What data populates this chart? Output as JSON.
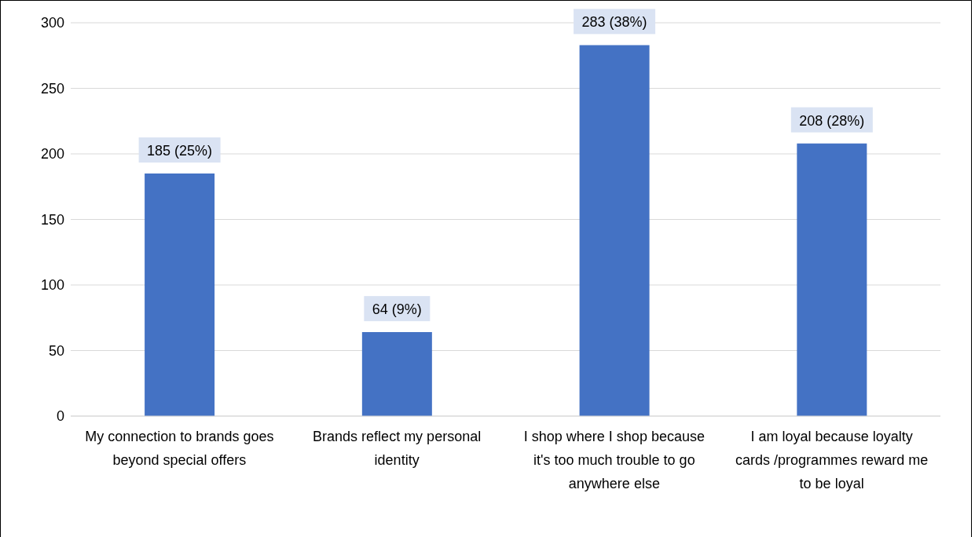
{
  "chart_data": {
    "type": "bar",
    "categories": [
      "My connection to brands goes beyond special offers",
      "Brands reflect my personal identity",
      "I shop where I shop because it's too much trouble to go anywhere else",
      "I am loyal because loyalty cards /programmes reward me to be loyal"
    ],
    "values": [
      185,
      64,
      283,
      208
    ],
    "value_labels": [
      "185 (25%)",
      "64 (9%)",
      "283 (38%)",
      "208 (28%)"
    ],
    "color": "#4472c4",
    "ylim": [
      0,
      300
    ],
    "yticks": [
      0,
      50,
      100,
      150,
      200,
      250,
      300
    ],
    "grid": "y",
    "legend": false
  }
}
